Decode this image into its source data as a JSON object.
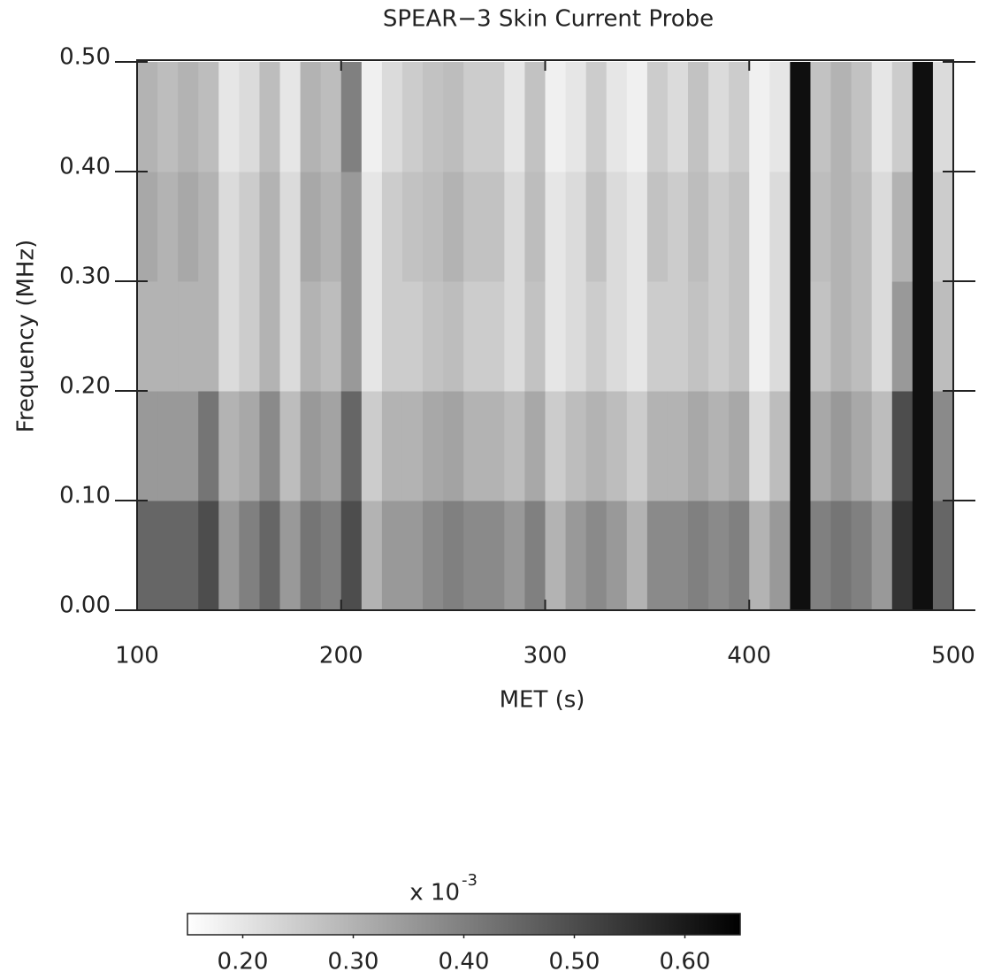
{
  "chart_data": {
    "type": "heatmap",
    "title": "SPEAR−3 Skin Current Probe",
    "x_label": "MET (s)",
    "y_label": "Frequency (MHz)",
    "x_edges": [
      100,
      110,
      120,
      130,
      140,
      150,
      160,
      170,
      180,
      190,
      200,
      210,
      220,
      230,
      240,
      250,
      260,
      270,
      280,
      290,
      300,
      310,
      320,
      330,
      340,
      350,
      360,
      370,
      380,
      390,
      400,
      410,
      420,
      430,
      440,
      450,
      460,
      470,
      480,
      490,
      500
    ],
    "y_edges": [
      0,
      0.1,
      0.2,
      0.3,
      0.4,
      0.5
    ],
    "z": [
      [
        0.45,
        0.45,
        0.45,
        0.5,
        0.35,
        0.4,
        0.45,
        0.35,
        0.42,
        0.4,
        0.5,
        0.3,
        0.35,
        0.35,
        0.38,
        0.4,
        0.38,
        0.38,
        0.35,
        0.4,
        0.3,
        0.35,
        0.38,
        0.35,
        0.3,
        0.38,
        0.38,
        0.4,
        0.38,
        0.4,
        0.3,
        0.35,
        0.62,
        0.4,
        0.42,
        0.4,
        0.35,
        0.55,
        0.62,
        0.45
      ],
      [
        0.35,
        0.35,
        0.35,
        0.42,
        0.3,
        0.32,
        0.38,
        0.28,
        0.35,
        0.33,
        0.45,
        0.25,
        0.3,
        0.3,
        0.32,
        0.33,
        0.3,
        0.3,
        0.28,
        0.32,
        0.25,
        0.28,
        0.3,
        0.28,
        0.25,
        0.3,
        0.3,
        0.32,
        0.3,
        0.32,
        0.22,
        0.28,
        0.62,
        0.32,
        0.35,
        0.32,
        0.28,
        0.5,
        0.62,
        0.38
      ],
      [
        0.3,
        0.3,
        0.3,
        0.3,
        0.22,
        0.25,
        0.3,
        0.22,
        0.3,
        0.28,
        0.35,
        0.2,
        0.25,
        0.25,
        0.27,
        0.28,
        0.25,
        0.25,
        0.22,
        0.27,
        0.2,
        0.22,
        0.25,
        0.22,
        0.2,
        0.25,
        0.25,
        0.27,
        0.25,
        0.27,
        0.18,
        0.22,
        0.62,
        0.27,
        0.3,
        0.28,
        0.22,
        0.35,
        0.62,
        0.28
      ],
      [
        0.32,
        0.3,
        0.32,
        0.3,
        0.22,
        0.25,
        0.3,
        0.22,
        0.32,
        0.3,
        0.35,
        0.2,
        0.25,
        0.27,
        0.28,
        0.3,
        0.27,
        0.27,
        0.22,
        0.28,
        0.2,
        0.22,
        0.27,
        0.22,
        0.2,
        0.27,
        0.25,
        0.28,
        0.25,
        0.27,
        0.18,
        0.22,
        0.62,
        0.28,
        0.3,
        0.28,
        0.22,
        0.3,
        0.62,
        0.25
      ],
      [
        0.3,
        0.28,
        0.3,
        0.28,
        0.2,
        0.22,
        0.28,
        0.2,
        0.3,
        0.28,
        0.4,
        0.18,
        0.22,
        0.25,
        0.27,
        0.28,
        0.25,
        0.25,
        0.2,
        0.27,
        0.18,
        0.2,
        0.25,
        0.2,
        0.18,
        0.25,
        0.22,
        0.27,
        0.22,
        0.25,
        0.18,
        0.2,
        0.62,
        0.27,
        0.3,
        0.27,
        0.2,
        0.25,
        0.62,
        0.22
      ]
    ],
    "xlim": [
      100,
      500
    ],
    "xticks": [
      100,
      200,
      300,
      400,
      500
    ],
    "ylim": [
      0,
      0.5
    ],
    "yticks": [
      {
        "value": 0,
        "label": "0.00"
      },
      {
        "value": 0.1,
        "label": "0.10"
      },
      {
        "value": 0.2,
        "label": "0.20"
      },
      {
        "value": 0.3,
        "label": "0.30"
      },
      {
        "value": 0.4,
        "label": "0.40"
      },
      {
        "value": 0.5,
        "label": "0.50"
      }
    ],
    "zlim": [
      0.15,
      0.65
    ],
    "colorbar_ticks": [
      {
        "value": 0.2,
        "label": "0.20"
      },
      {
        "value": 0.3,
        "label": "0.30"
      },
      {
        "value": 0.4,
        "label": "0.40"
      },
      {
        "value": 0.5,
        "label": "0.50"
      },
      {
        "value": 0.6,
        "label": "0.60"
      }
    ],
    "colorbar_label": "x 10",
    "colorbar_exponent": "-3",
    "colormap": [
      "#ffffff",
      "#000000"
    ]
  }
}
